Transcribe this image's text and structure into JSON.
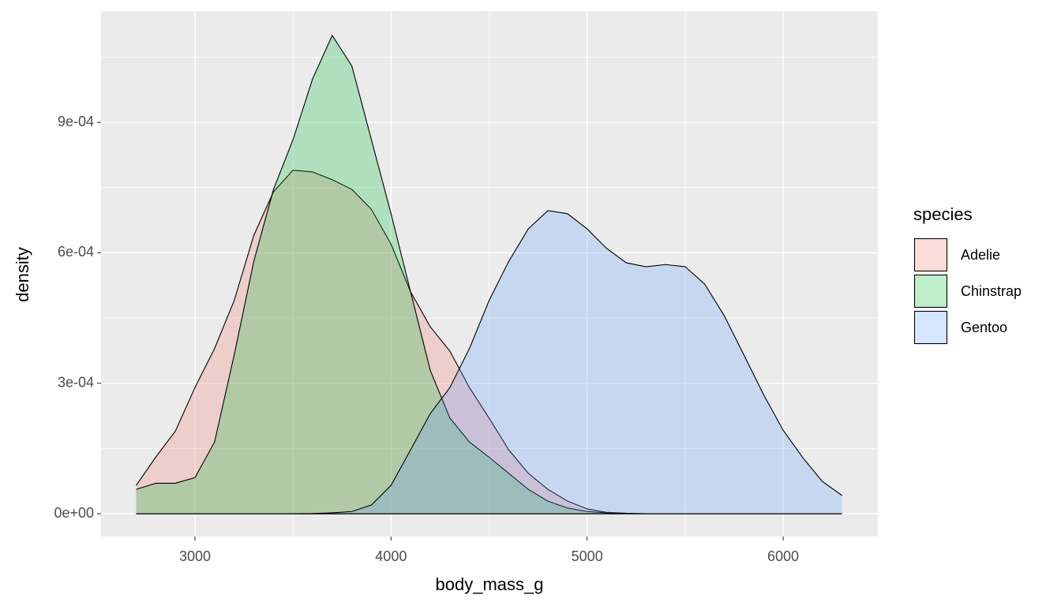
{
  "chart_data": {
    "type": "area",
    "x_label": "body_mass_g",
    "y_label": "density",
    "legend_title": "species",
    "legend_position": "right",
    "grid": true,
    "fill_opacity": 0.25,
    "xlim": [
      2521,
      6483
    ],
    "xticks": [
      3000,
      4000,
      5000,
      6000
    ],
    "ylim": [
      -5.26e-05,
      0.001156
    ],
    "yticks": [
      {
        "value": 0,
        "label": "0e+00"
      },
      {
        "value": 0.0003,
        "label": "3e-04"
      },
      {
        "value": 0.0006,
        "label": "6e-04"
      },
      {
        "value": 0.0009,
        "label": "9e-04"
      }
    ],
    "x": [
      2700,
      2800,
      2900,
      3000,
      3100,
      3200,
      3300,
      3400,
      3500,
      3600,
      3700,
      3800,
      3900,
      4000,
      4100,
      4200,
      4300,
      4400,
      4500,
      4600,
      4700,
      4800,
      4900,
      5000,
      5100,
      5200,
      5300,
      5400,
      5500,
      5600,
      5700,
      5800,
      5900,
      6000,
      6100,
      6200,
      6300
    ],
    "series": [
      {
        "name": "Adelie",
        "color": "#F8766D",
        "values": [
          6.5e-05,
          0.00013,
          0.00019,
          0.00029,
          0.00038,
          0.00049,
          0.00064,
          0.00074,
          0.00079,
          0.000786,
          0.000768,
          0.000746,
          0.0007,
          0.00062,
          0.00051,
          0.00043,
          0.000374,
          0.00029,
          0.00022,
          0.000147,
          9.3e-05,
          5.6e-05,
          2.9e-05,
          1.1e-05,
          3e-06,
          1e-06,
          0,
          0,
          0,
          0,
          0,
          0,
          0,
          0,
          0,
          0,
          0
        ]
      },
      {
        "name": "Chinstrap",
        "color": "#00BA38",
        "values": [
          5.6e-05,
          7e-05,
          7e-05,
          8.3e-05,
          0.000165,
          0.000365,
          0.00058,
          0.000745,
          0.00086,
          0.001,
          0.0011,
          0.00103,
          0.00086,
          0.00069,
          0.00051,
          0.00033,
          0.00022,
          0.000165,
          0.00013,
          9.3e-05,
          5.6e-05,
          2.9e-05,
          1.3e-05,
          5e-06,
          2e-06,
          0,
          0,
          0,
          0,
          0,
          0,
          0,
          0,
          0,
          0,
          0,
          0
        ]
      },
      {
        "name": "Gentoo",
        "color": "#619CFF",
        "values": [
          0,
          0,
          0,
          0,
          0,
          0,
          0,
          0,
          0,
          5e-07,
          2e-06,
          5e-06,
          2e-05,
          6.5e-05,
          0.000147,
          0.00023,
          0.00029,
          0.00038,
          0.00049,
          0.00058,
          0.000655,
          0.000697,
          0.00069,
          0.000655,
          0.00061,
          0.000577,
          0.000568,
          0.000573,
          0.000568,
          0.000528,
          0.000455,
          0.000365,
          0.000274,
          0.000192,
          0.000129,
          7.4e-05,
          4.2e-05
        ]
      }
    ]
  }
}
